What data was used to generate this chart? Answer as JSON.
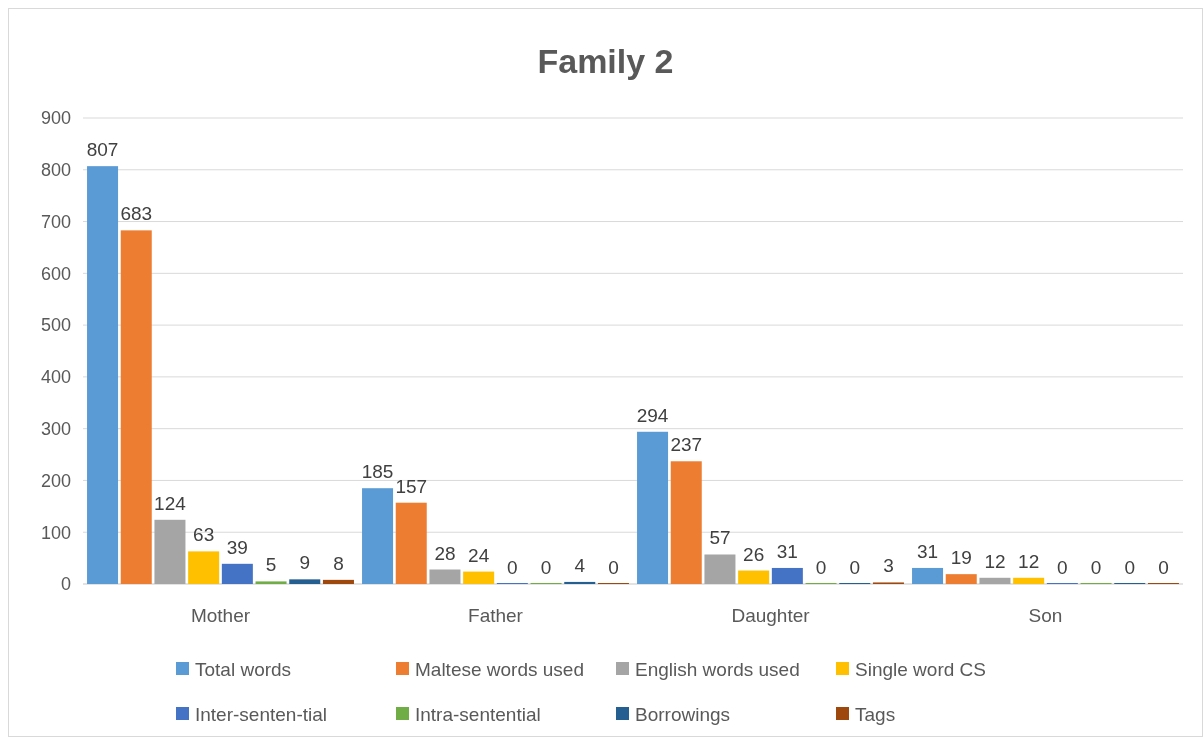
{
  "chart_data": {
    "type": "bar",
    "title": "Family 2",
    "categories": [
      "Mother",
      "Father",
      "Daughter",
      "Son"
    ],
    "series": [
      {
        "name": "Total words",
        "color": "#5b9bd5",
        "values": [
          807,
          185,
          294,
          31
        ]
      },
      {
        "name": "Maltese words used",
        "color": "#ed7d31",
        "values": [
          683,
          157,
          237,
          19
        ]
      },
      {
        "name": "English words used",
        "color": "#a5a5a5",
        "values": [
          124,
          28,
          57,
          12
        ]
      },
      {
        "name": "Single word CS",
        "color": "#ffc000",
        "values": [
          63,
          24,
          26,
          12
        ]
      },
      {
        "name": "Inter-senten-tial",
        "color": "#4472c4",
        "values": [
          39,
          0,
          31,
          0
        ]
      },
      {
        "name": "Intra-sentential",
        "color": "#70ad47",
        "values": [
          5,
          0,
          0,
          0
        ]
      },
      {
        "name": "Borrowings",
        "color": "#255e91",
        "values": [
          9,
          4,
          0,
          0
        ]
      },
      {
        "name": "Tags",
        "color": "#9e480e",
        "values": [
          8,
          0,
          3,
          0
        ]
      }
    ],
    "ylim": [
      0,
      900
    ],
    "yticks": [
      0,
      100,
      200,
      300,
      400,
      500,
      600,
      700,
      800,
      900
    ],
    "grid": "y",
    "legend": "bottom",
    "data_labels": true
  }
}
